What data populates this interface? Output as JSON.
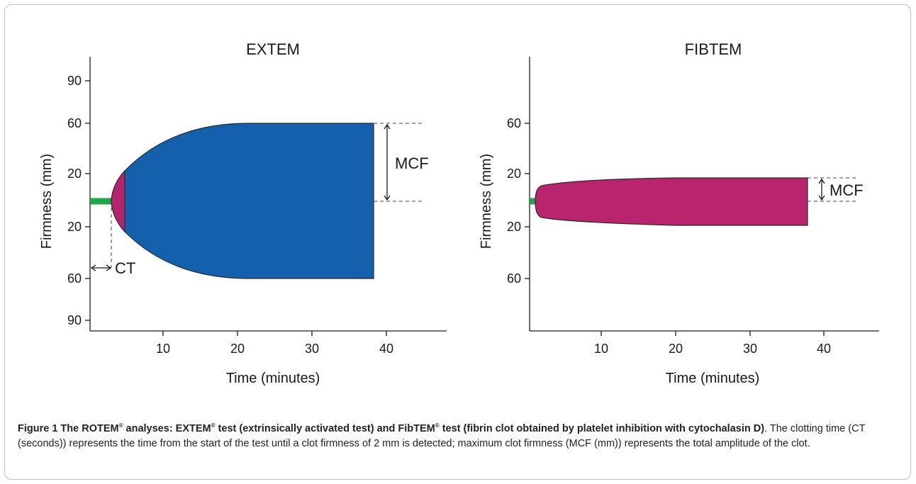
{
  "chart_data": [
    {
      "type": "area",
      "title": "EXTEM",
      "xlabel": "Time (minutes)",
      "ylabel": "Firmness (mm)",
      "x_ticks": [
        "10",
        "20",
        "30",
        "40"
      ],
      "x_tick_values": [
        10,
        20,
        30,
        40
      ],
      "y_ticks": [
        "90",
        "60",
        "20",
        "20",
        "60",
        "90"
      ],
      "x_range": [
        0,
        48
      ],
      "annotations": {
        "mcf": "MCF",
        "ct": "CT"
      },
      "series": [
        {
          "x": [
            3,
            3.3,
            4,
            5,
            7,
            10,
            13,
            17,
            21,
            30,
            38.2
          ],
          "upper": [
            2,
            6,
            13,
            20,
            30,
            40,
            48,
            55,
            58,
            58,
            58
          ],
          "lower": [
            -2,
            -6,
            -13,
            -20,
            -30,
            -40,
            -48,
            -55,
            -58,
            -58,
            -58
          ]
        }
      ],
      "colors": {
        "early": "#b5246f",
        "main": "#1560ad",
        "baseline": "#1fa64a"
      }
    },
    {
      "type": "area",
      "title": "FIBTEM",
      "xlabel": "Time (minutes)",
      "ylabel": "Firmness (mm)",
      "x_ticks": [
        "10",
        "20",
        "30",
        "40"
      ],
      "x_tick_values": [
        10,
        20,
        30,
        40
      ],
      "y_ticks": [
        "60",
        "20",
        "20",
        "60"
      ],
      "x_range": [
        0,
        48
      ],
      "annotations": {
        "mcf": "MCF"
      },
      "series": [
        {
          "x": [
            1,
            1.3,
            2,
            4,
            10,
            20,
            30,
            38
          ],
          "upper": [
            0,
            10,
            16,
            17,
            17.5,
            18,
            18,
            18
          ],
          "lower": [
            0,
            -10,
            -16,
            -17,
            -17.5,
            -18,
            -18,
            -18
          ]
        }
      ],
      "colors": {
        "main": "#b8246d",
        "baseline": "#1fa64a"
      }
    }
  ],
  "caption": {
    "fig_label": "Figure 1",
    "bold_1": " The ROTEM",
    "sup_1": "®",
    "bold_2": " analyses: EXTEM",
    "sup_2": "®",
    "bold_3": " test (extrinsically activated test) and FibTEM",
    "sup_3": "®",
    "bold_4": " test (fibrin clot obtained by platelet inhibition with cytochalasin D)",
    "normal": ". The clotting time (CT (seconds)) represents the time from the start of the test until a clot firmness of 2 mm is detected; maximum clot firmness (MCF (mm)) represents the total amplitude of the clot."
  }
}
